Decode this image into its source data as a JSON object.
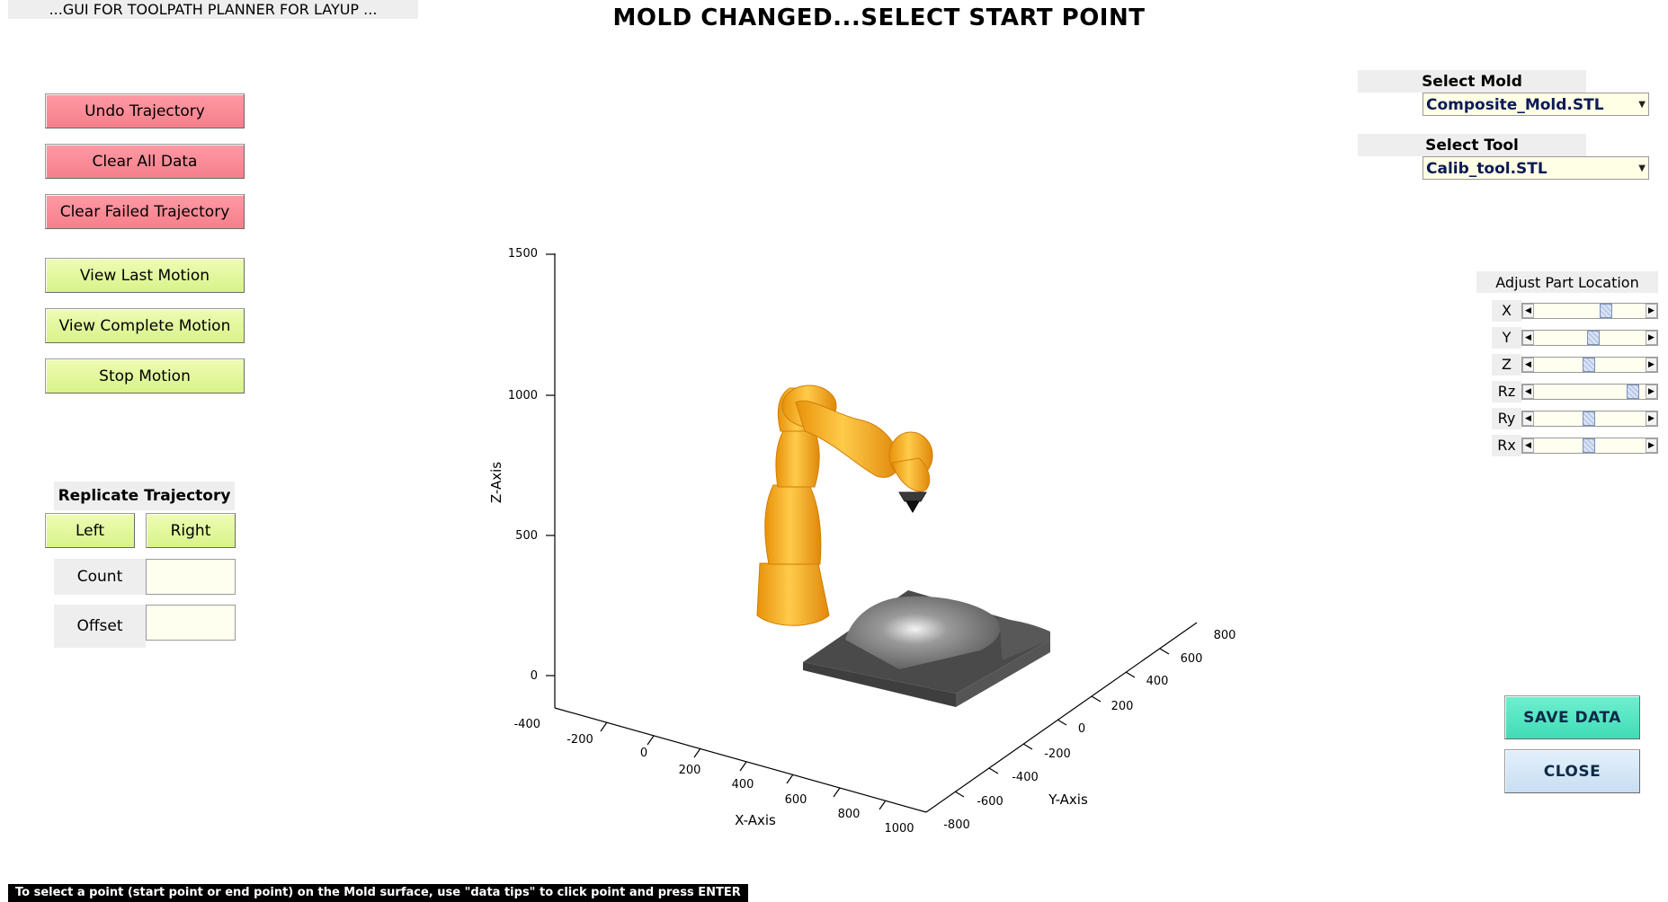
{
  "header": {
    "app_title": "...GUI FOR TOOLPATH PLANNER FOR LAYUP ...",
    "status_message": "MOLD CHANGED...SELECT START POINT"
  },
  "left_panel": {
    "undo_trajectory": "Undo Trajectory",
    "clear_all_data": "Clear All Data",
    "clear_failed_trajectory": "Clear Failed Trajectory",
    "view_last_motion": "View Last Motion",
    "view_complete_motion": "View Complete Motion",
    "stop_motion": "Stop Motion"
  },
  "replicate": {
    "title": "Replicate Trajectory",
    "left": "Left",
    "right": "Right",
    "count_label": "Count",
    "offset_label": "Offset",
    "count_value": "",
    "offset_value": ""
  },
  "right_panel": {
    "select_mold_label": "Select Mold",
    "mold_value": "Composite_Mold.STL",
    "select_tool_label": "Select Tool",
    "tool_value": "Calib_tool.STL",
    "adjust_title": "Adjust Part Location",
    "sliders": [
      {
        "label": "X",
        "value": 0.66
      },
      {
        "label": "Y",
        "value": 0.54
      },
      {
        "label": "Z",
        "value": 0.49
      },
      {
        "label": "Rz",
        "value": 0.94
      },
      {
        "label": "Ry",
        "value": 0.49
      },
      {
        "label": "Rx",
        "value": 0.49
      }
    ],
    "save_data": "SAVE DATA",
    "close": "CLOSE"
  },
  "footer": {
    "message": "To select a point (start point or end point) on the Mold surface, use \"data tips\" to click point and press ENTER"
  },
  "plot": {
    "z_axis_label": "Z-Axis",
    "x_axis_label": "X-Axis",
    "y_axis_label": "Y-Axis",
    "z_ticks": [
      "1500",
      "1000",
      "500",
      "0",
      "-400"
    ],
    "x_ticks": [
      "-200",
      "0",
      "200",
      "400",
      "600",
      "800",
      "1000"
    ],
    "y_ticks": [
      "-800",
      "-600",
      "-400",
      "-200",
      "0",
      "200",
      "400",
      "600",
      "800"
    ],
    "colors": {
      "robot": "#f7a816",
      "mold": "#6e6e6e"
    }
  }
}
